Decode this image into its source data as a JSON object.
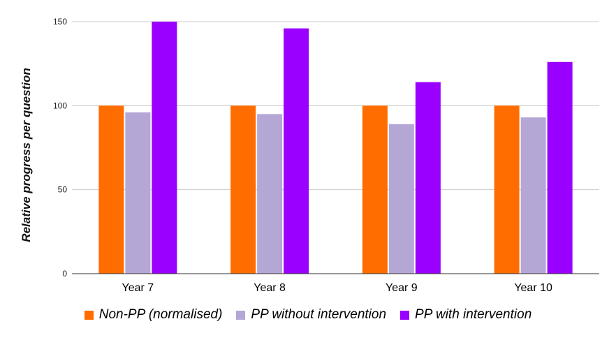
{
  "chart_data": {
    "type": "bar",
    "categories": [
      "Year 7",
      "Year 8",
      "Year 9",
      "Year 10"
    ],
    "series": [
      {
        "name": "Non-PP (normalised)",
        "color": "#ff6d01",
        "values": [
          100,
          100,
          100,
          100
        ]
      },
      {
        "name": "PP without intervention",
        "color": "#b4a7d6",
        "values": [
          96,
          95,
          89,
          93
        ]
      },
      {
        "name": "PP with intervention",
        "color": "#9900ff",
        "values": [
          150,
          146,
          114,
          126
        ]
      }
    ],
    "ylabel": "Relative progress per question",
    "xlabel": "",
    "ylim": [
      0,
      150
    ],
    "yticks": [
      0,
      50,
      100,
      150
    ],
    "grid": true,
    "legend_position": "bottom"
  }
}
